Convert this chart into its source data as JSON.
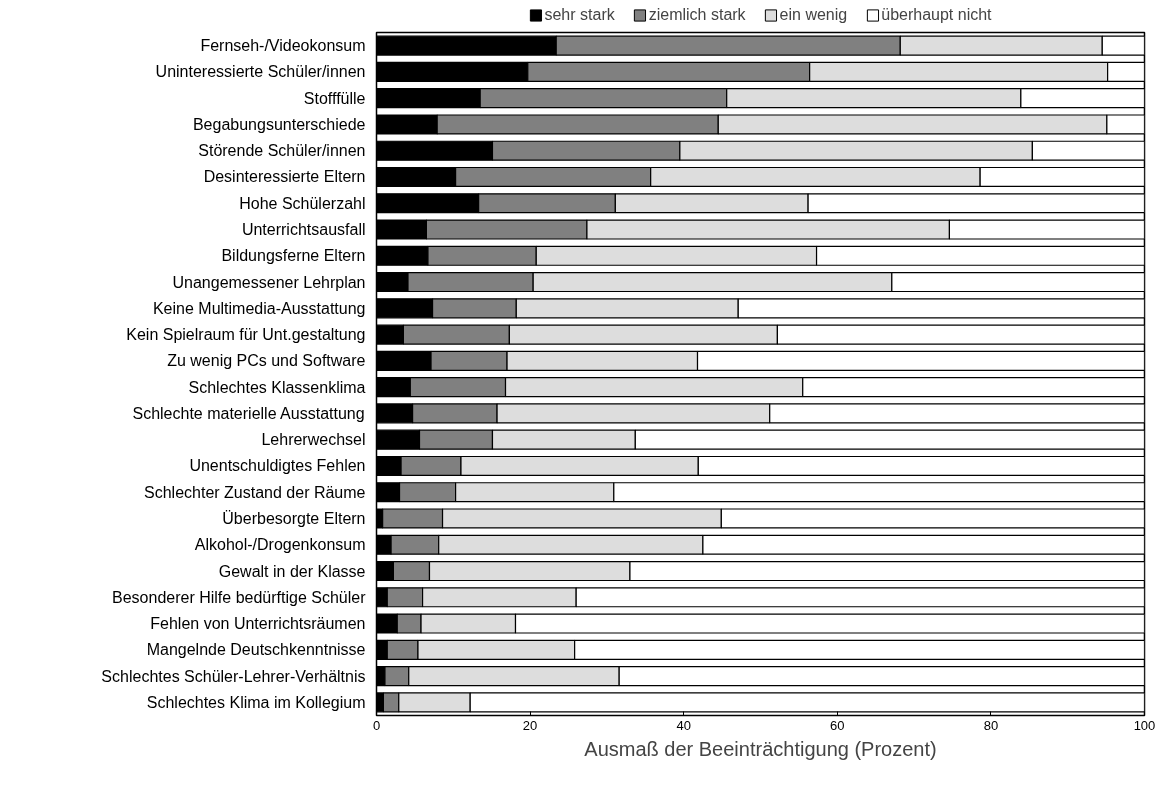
{
  "chart_data": {
    "type": "bar",
    "orientation": "horizontal",
    "stacked": true,
    "xlabel": "Ausmaß der Beeinträchtigung (Prozent)",
    "categories": [
      "Fernseh-/Videokonsum",
      "Uninteressierte Schüler/innen",
      "Stofffülle",
      "Begabungsunterschiede",
      "Störende Schüler/innen",
      "Desinteressierte Eltern",
      "Hohe Schülerzahl",
      "Unterrichtsausfall",
      "Bildungsferne Eltern",
      "Unangemessener Lehrplan",
      "Keine Multimedia-Ausstattung",
      "Kein Spielraum für Unt.gestaltung",
      "Zu wenig PCs und Software",
      "Schlechtes Klassenklima",
      "Schlechte materielle Ausstattung",
      "Lehrerwechsel",
      "Unentschuldigtes Fehlen",
      "Schlechter Zustand der Räume",
      "Überbesorgte Eltern",
      "Alkohol-/Drogenkonsum",
      "Gewalt in der Klasse",
      "Besonderer Hilfe bedürftige Schüler",
      "Fehlen von Unterrichtsräumen",
      "Mangelnde Deutschkenntnisse",
      "Schlechtes Schüler-Lehrer-Verhältnis",
      "Schlechtes Klima im Kollegium"
    ],
    "series": [
      {
        "name": "sehr stark",
        "color": "#000000",
        "values": [
          23.4,
          19.7,
          13.5,
          7.9,
          15.1,
          10.3,
          13.3,
          6.5,
          6.7,
          4.1,
          7.3,
          3.5,
          7.1,
          4.4,
          4.7,
          5.6,
          3.2,
          3.0,
          0.8,
          1.9,
          2.2,
          1.4,
          2.7,
          1.4,
          1.1,
          0.9
        ]
      },
      {
        "name": "ziemlich stark",
        "color": "#808080",
        "values": [
          44.8,
          36.7,
          32.1,
          36.6,
          24.4,
          25.4,
          17.8,
          20.9,
          14.1,
          16.3,
          10.9,
          13.8,
          9.9,
          12.4,
          11.0,
          9.5,
          7.8,
          7.3,
          7.8,
          6.2,
          4.7,
          4.6,
          3.1,
          4.0,
          3.1,
          2.0
        ]
      },
      {
        "name": "ein wenig",
        "color": "#dddddd",
        "values": [
          26.3,
          38.8,
          38.3,
          50.6,
          45.9,
          42.9,
          25.1,
          47.2,
          36.5,
          46.7,
          28.9,
          34.9,
          24.8,
          38.7,
          35.5,
          18.6,
          30.9,
          20.6,
          36.3,
          34.4,
          26.1,
          20.0,
          12.3,
          20.4,
          27.4,
          9.3
        ]
      },
      {
        "name": "überhaupt nicht",
        "color": "#ffffff",
        "values": [
          5.5,
          4.8,
          16.1,
          4.9,
          14.6,
          21.4,
          43.8,
          25.4,
          42.7,
          32.9,
          52.9,
          47.8,
          58.2,
          44.5,
          48.8,
          66.3,
          58.1,
          69.1,
          55.1,
          57.5,
          67.0,
          74.0,
          81.9,
          74.2,
          68.4,
          87.8
        ]
      }
    ],
    "xlim": [
      0,
      100
    ],
    "xticks": [
      0,
      20,
      40,
      60,
      80,
      100
    ],
    "grid": false,
    "legend": "top"
  }
}
